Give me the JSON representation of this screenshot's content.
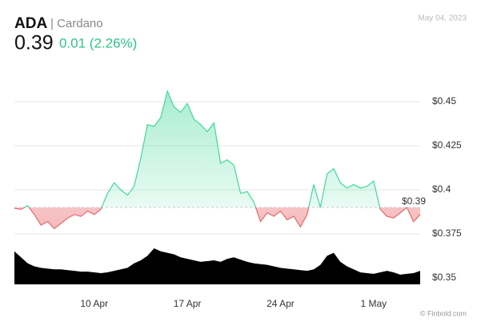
{
  "header": {
    "symbol": "ADA",
    "name": "| Cardano",
    "date": "May 04, 2023",
    "price": "0.39",
    "change": "0.01 (2.26%)",
    "source": "© Finbold.com"
  },
  "chart_data": {
    "type": "line",
    "categories": [
      null,
      null,
      null,
      null,
      null,
      null,
      null,
      null,
      null,
      null,
      null,
      null,
      "10 Apr",
      null,
      null,
      null,
      null,
      null,
      null,
      null,
      null,
      null,
      null,
      null,
      null,
      null,
      "17 Apr",
      null,
      null,
      null,
      null,
      null,
      null,
      null,
      null,
      null,
      null,
      null,
      null,
      null,
      "24 Apr",
      null,
      null,
      null,
      null,
      null,
      null,
      null,
      null,
      null,
      null,
      null,
      null,
      null,
      "1 May",
      null,
      null,
      null,
      null,
      null,
      null,
      null
    ],
    "series": [
      {
        "values": [
          0.3895,
          0.389,
          0.391,
          0.386,
          0.38,
          0.382,
          0.378,
          0.381,
          0.384,
          0.386,
          0.385,
          0.388,
          0.386,
          0.389,
          0.398,
          0.404,
          0.4,
          0.397,
          0.402,
          0.418,
          0.437,
          0.436,
          0.441,
          0.456,
          0.447,
          0.444,
          0.449,
          0.44,
          0.437,
          0.433,
          0.438,
          0.415,
          0.417,
          0.414,
          0.398,
          0.399,
          0.393,
          0.382,
          0.387,
          0.385,
          0.388,
          0.383,
          0.385,
          0.379,
          0.386,
          0.403,
          0.39,
          0.409,
          0.412,
          0.404,
          0.401,
          0.403,
          0.401,
          0.402,
          0.405,
          0.389,
          0.385,
          0.384,
          0.387,
          0.39,
          0.382,
          0.386
        ],
        "color_up": "#3fd89a",
        "color_down": "#e8676b"
      }
    ],
    "volume": {
      "color": "#000000",
      "values": [
        44,
        36,
        28,
        24,
        22,
        21,
        20,
        20,
        19,
        18,
        17,
        17,
        16,
        15,
        16,
        18,
        20,
        22,
        28,
        32,
        38,
        48,
        44,
        42,
        40,
        36,
        34,
        32,
        30,
        31,
        32,
        30,
        34,
        36,
        33,
        30,
        28,
        27,
        26,
        24,
        22,
        21,
        20,
        19,
        18,
        20,
        26,
        38,
        42,
        30,
        24,
        20,
        16,
        15,
        14,
        16,
        18,
        16,
        13,
        14,
        15,
        18
      ]
    },
    "baseline": 0.39,
    "last_label": "$0.39",
    "ylim": [
      0.3464,
      0.4668
    ],
    "yticks": [
      {
        "value": 0.35,
        "label": "$0.35"
      },
      {
        "value": 0.375,
        "label": "$0.375"
      },
      {
        "value": 0.4,
        "label": "$0.4"
      },
      {
        "value": 0.425,
        "label": "$0.425"
      },
      {
        "value": 0.45,
        "label": "$0.45"
      }
    ],
    "grid": true
  }
}
